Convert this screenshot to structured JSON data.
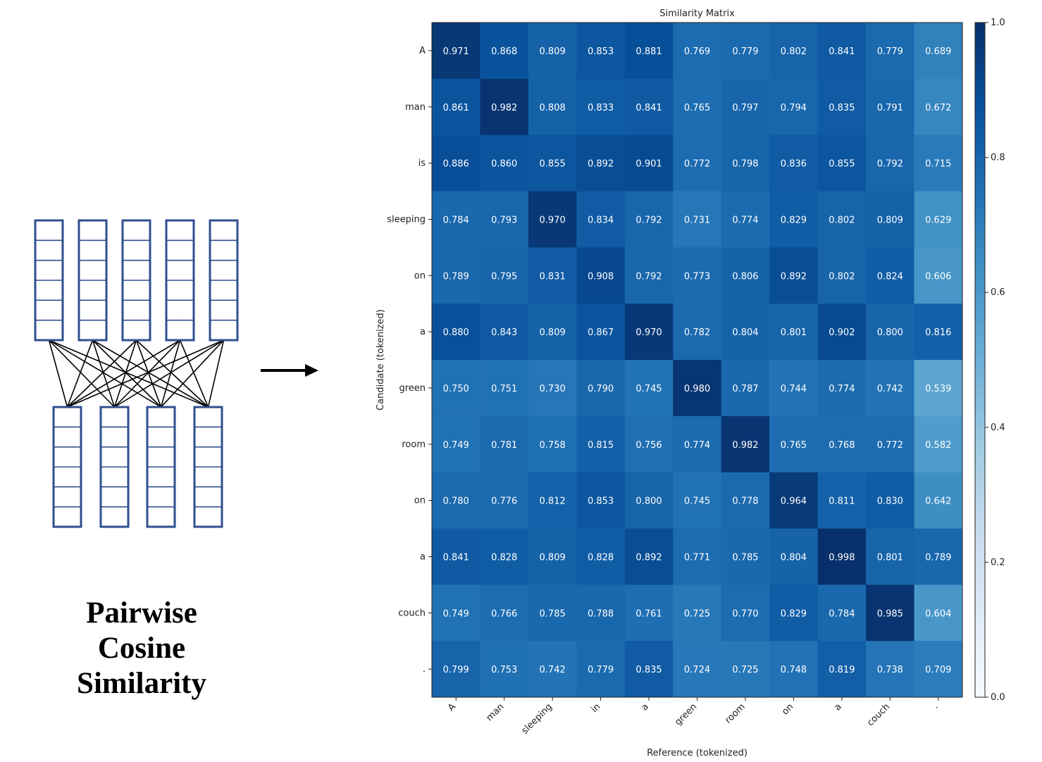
{
  "caption": {
    "line1": "Pairwise",
    "line2": "Cosine",
    "line3": "Similarity"
  },
  "colors": {
    "diagram_box": "#2f4f8f",
    "arrow": "#000000",
    "cmap_low": "#f7fbff",
    "cmap_high": "#08306b"
  },
  "chart_data": {
    "type": "heatmap",
    "title": "Similarity Matrix",
    "xlabel": "Reference (tokenized)",
    "ylabel": "Candidate (tokenized)",
    "x_labels": [
      "A",
      "man",
      "sleeping",
      "in",
      "a",
      "green",
      "room",
      "on",
      "a",
      "couch",
      "."
    ],
    "y_labels": [
      "A",
      "man",
      "is",
      "sleeping",
      "on",
      "a",
      "green",
      "room",
      "on",
      "a",
      "couch",
      "."
    ],
    "values": [
      [
        0.971,
        0.868,
        0.809,
        0.853,
        0.881,
        0.769,
        0.779,
        0.802,
        0.841,
        0.779,
        0.689
      ],
      [
        0.861,
        0.982,
        0.808,
        0.833,
        0.841,
        0.765,
        0.797,
        0.794,
        0.835,
        0.791,
        0.672
      ],
      [
        0.886,
        0.86,
        0.855,
        0.892,
        0.901,
        0.772,
        0.798,
        0.836,
        0.855,
        0.792,
        0.715
      ],
      [
        0.784,
        0.793,
        0.97,
        0.834,
        0.792,
        0.731,
        0.774,
        0.829,
        0.802,
        0.809,
        0.629
      ],
      [
        0.789,
        0.795,
        0.831,
        0.908,
        0.792,
        0.773,
        0.806,
        0.892,
        0.802,
        0.824,
        0.606
      ],
      [
        0.88,
        0.843,
        0.809,
        0.867,
        0.97,
        0.782,
        0.804,
        0.801,
        0.902,
        0.8,
        0.816
      ],
      [
        0.75,
        0.751,
        0.73,
        0.79,
        0.745,
        0.98,
        0.787,
        0.744,
        0.774,
        0.742,
        0.539
      ],
      [
        0.749,
        0.781,
        0.758,
        0.815,
        0.756,
        0.774,
        0.982,
        0.765,
        0.768,
        0.772,
        0.582
      ],
      [
        0.78,
        0.776,
        0.812,
        0.853,
        0.8,
        0.745,
        0.778,
        0.964,
        0.811,
        0.83,
        0.642
      ],
      [
        0.841,
        0.828,
        0.809,
        0.828,
        0.892,
        0.771,
        0.785,
        0.804,
        0.998,
        0.801,
        0.789
      ],
      [
        0.749,
        0.766,
        0.785,
        0.788,
        0.761,
        0.725,
        0.77,
        0.829,
        0.784,
        0.985,
        0.604
      ],
      [
        0.799,
        0.753,
        0.742,
        0.779,
        0.835,
        0.724,
        0.725,
        0.748,
        0.819,
        0.738,
        0.709
      ]
    ],
    "colorbar": {
      "range": [
        0.0,
        1.0
      ],
      "ticks": [
        "0.0",
        "0.2",
        "0.4",
        "0.6",
        "0.8",
        "1.0"
      ],
      "colormap": "Blues"
    }
  }
}
